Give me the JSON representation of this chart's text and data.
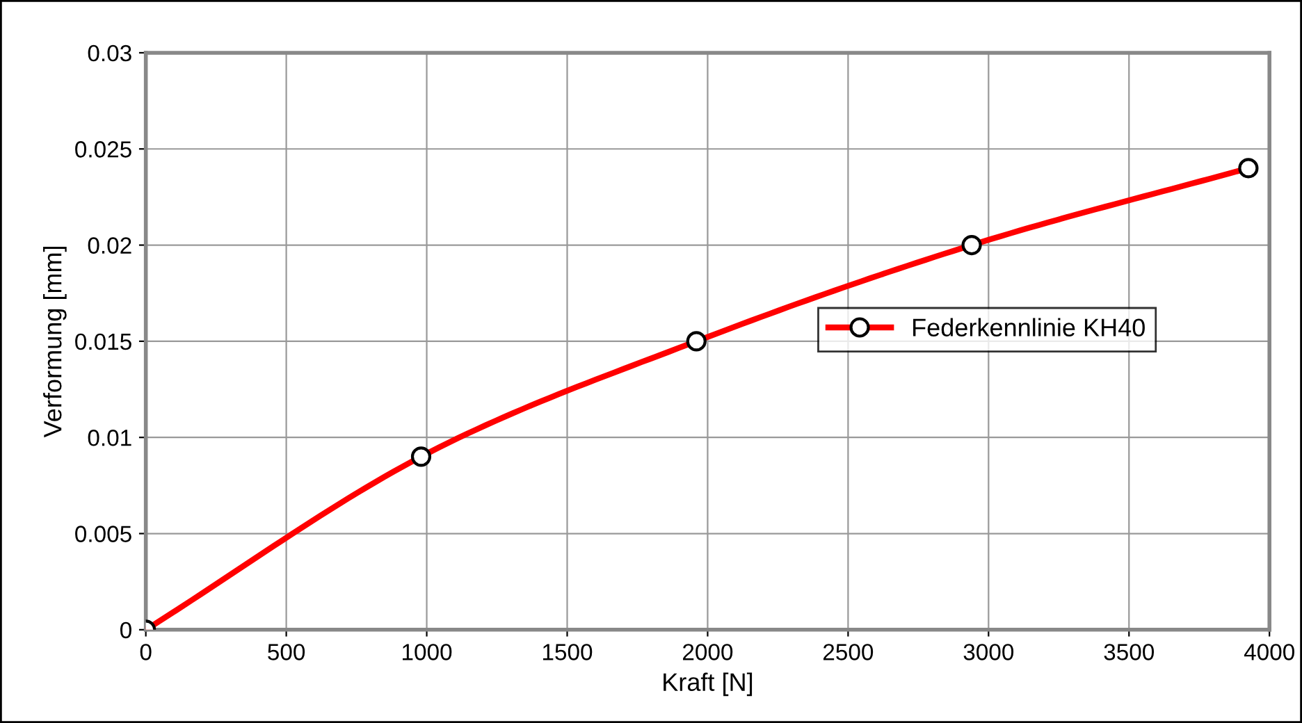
{
  "chart_data": {
    "type": "line",
    "xlabel": "Kraft [N]",
    "ylabel": "Verformung [mm]",
    "x": [
      0,
      980,
      1960,
      2940,
      3925
    ],
    "series": [
      {
        "name": "Federkennlinie KH40",
        "color": "#ff0000",
        "values": [
          0,
          0.009,
          0.015,
          0.02,
          0.024
        ]
      }
    ],
    "xlim": [
      0,
      4000
    ],
    "xticks": [
      0,
      500,
      1000,
      1500,
      2000,
      2500,
      3000,
      3500,
      4000
    ],
    "ylim": [
      0,
      0.03
    ],
    "yticks": [
      0,
      0.005,
      0.01,
      0.015,
      0.02,
      0.025,
      0.03
    ],
    "grid": true,
    "legend": "right",
    "marker": "circle",
    "line_style": "solid"
  }
}
